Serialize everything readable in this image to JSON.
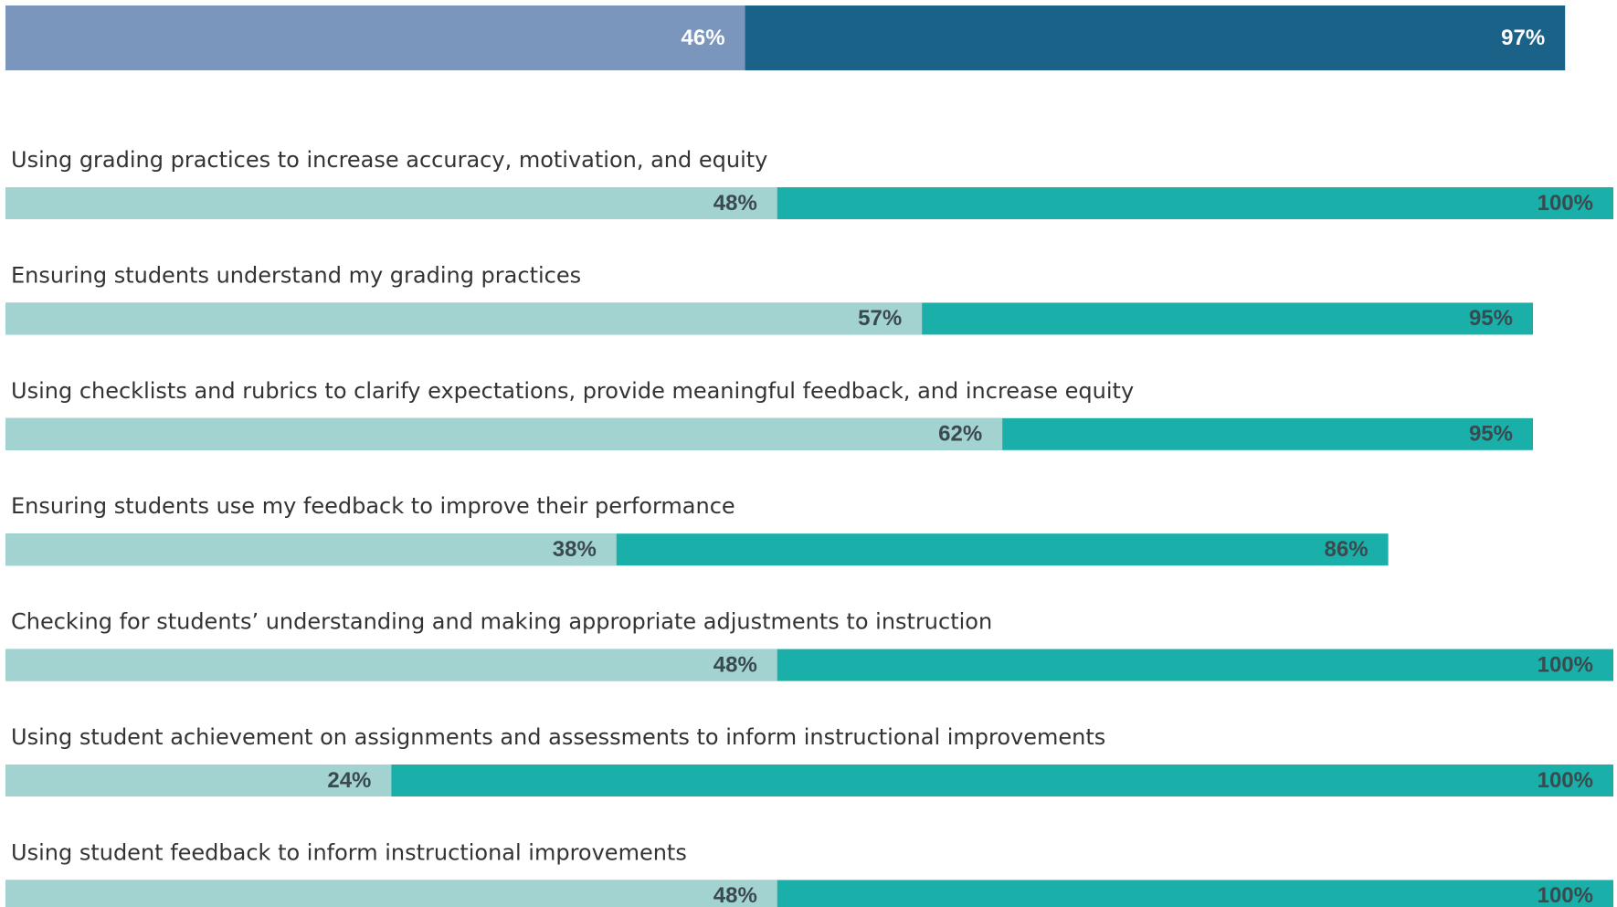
{
  "chart_data": {
    "type": "bar",
    "orientation": "horizontal",
    "overlap": true,
    "categories": [
      null,
      "Using grading practices to increase accuracy, motivation, and equity",
      "Ensuring students understand my grading practices",
      "Using checklists and rubrics to clarify expectations, provide meaningful feedback, and increase equity",
      "Ensuring students use my feedback to improve their performance",
      "Checking for students’ understanding and making appropriate adjustments to instruction",
      "Using student achievement on assignments and assessments to inform instructional improvements",
      "Using student feedback to inform instructional improvements"
    ],
    "series": [
      {
        "colors": [
          "#1b6289",
          "#1aafa8",
          "#1aafa8",
          "#1aafa8",
          "#1aafa8",
          "#1aafa8",
          "#1aafa8",
          "#1aafa8"
        ],
        "values": [
          97,
          100,
          95,
          95,
          86,
          100,
          100,
          100
        ],
        "value_labels": [
          "97%",
          "100%",
          "95%",
          "95%",
          "86%",
          "100%",
          "100%",
          "100%"
        ]
      },
      {
        "colors": [
          "#7b96bd",
          "#a2d3d1",
          "#a2d3d1",
          "#a2d3d1",
          "#a2d3d1",
          "#a2d3d1",
          "#a2d3d1",
          "#a2d3d1"
        ],
        "values": [
          46,
          48,
          57,
          62,
          38,
          48,
          24,
          48
        ],
        "value_labels": [
          "46%",
          "48%",
          "57%",
          "62%",
          "38%",
          "48%",
          "24%",
          "48%"
        ]
      }
    ],
    "xlim": [
      0,
      100
    ]
  }
}
